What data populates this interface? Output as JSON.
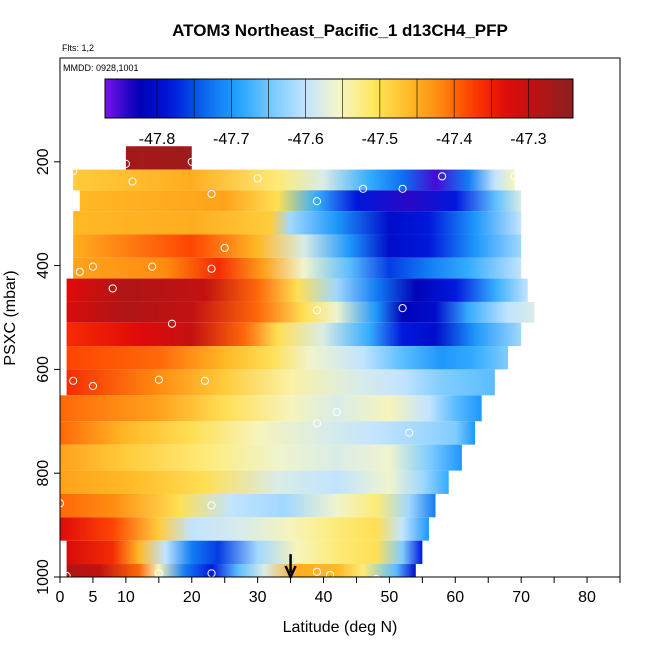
{
  "chart_data": {
    "type": "heatmap",
    "title": "ATOM3 Northeast_Pacific_1 d13CH4_PFP",
    "annotations": [
      "Flts: 1,2",
      "MMDD: 0928,1001"
    ],
    "xlabel": "Latitude (deg N)",
    "ylabel": "PSXC (mbar)",
    "xlim": [
      0,
      85
    ],
    "ylim": [
      1000,
      0
    ],
    "x_ticks": [
      0,
      5,
      10,
      20,
      30,
      40,
      50,
      60,
      70,
      80
    ],
    "y_ticks": [
      200,
      400,
      600,
      800,
      1000
    ],
    "colorbar": {
      "min": -47.87,
      "max": -47.24,
      "ticks": [
        -47.8,
        -47.7,
        -47.6,
        -47.5,
        -47.4,
        -47.3
      ],
      "tick_labels": [
        "-47.8",
        "-47.7",
        "-47.6",
        "-47.5",
        "-47.4",
        "-47.3"
      ]
    },
    "arrow_marker_latitude": 35,
    "bands": [
      {
        "p_top": 170,
        "p_bot": 215,
        "lat_start": 10,
        "lat_end": 20,
        "nodes": [
          [
            10,
            -47.27
          ],
          [
            20,
            -47.26
          ]
        ]
      },
      {
        "p_top": 215,
        "p_bot": 255,
        "lat_start": 2,
        "lat_end": 69,
        "nodes": [
          [
            2,
            -47.48
          ],
          [
            20,
            -47.45
          ],
          [
            33,
            -47.52
          ],
          [
            40,
            -47.58
          ],
          [
            47,
            -47.68
          ],
          [
            52,
            -47.73
          ],
          [
            57,
            -47.85
          ],
          [
            62,
            -47.72
          ],
          [
            66,
            -47.6
          ],
          [
            69,
            -47.55
          ]
        ]
      },
      {
        "p_top": 255,
        "p_bot": 295,
        "lat_start": 3,
        "lat_end": 70,
        "nodes": [
          [
            3,
            -47.46
          ],
          [
            25,
            -47.44
          ],
          [
            33,
            -47.5
          ],
          [
            39,
            -47.68
          ],
          [
            45,
            -47.78
          ],
          [
            53,
            -47.84
          ],
          [
            60,
            -47.78
          ],
          [
            66,
            -47.66
          ],
          [
            70,
            -47.58
          ]
        ]
      },
      {
        "p_top": 295,
        "p_bot": 340,
        "lat_start": 2,
        "lat_end": 70,
        "nodes": [
          [
            2,
            -47.46
          ],
          [
            20,
            -47.45
          ],
          [
            32,
            -47.48
          ],
          [
            35,
            -47.62
          ],
          [
            42,
            -47.7
          ],
          [
            50,
            -47.8
          ],
          [
            56,
            -47.78
          ],
          [
            63,
            -47.7
          ],
          [
            70,
            -47.6
          ]
        ]
      },
      {
        "p_top": 340,
        "p_bot": 385,
        "lat_start": 2,
        "lat_end": 70,
        "nodes": [
          [
            2,
            -47.45
          ],
          [
            20,
            -47.38
          ],
          [
            30,
            -47.46
          ],
          [
            37,
            -47.58
          ],
          [
            44,
            -47.7
          ],
          [
            50,
            -47.8
          ],
          [
            56,
            -47.78
          ],
          [
            63,
            -47.7
          ],
          [
            70,
            -47.62
          ]
        ]
      },
      {
        "p_top": 385,
        "p_bot": 425,
        "lat_start": 2,
        "lat_end": 70,
        "nodes": [
          [
            2,
            -47.44
          ],
          [
            16,
            -47.42
          ],
          [
            24,
            -47.36
          ],
          [
            31,
            -47.44
          ],
          [
            37,
            -47.56
          ],
          [
            44,
            -47.66
          ],
          [
            50,
            -47.76
          ],
          [
            56,
            -47.72
          ],
          [
            62,
            -47.68
          ],
          [
            70,
            -47.6
          ]
        ]
      },
      {
        "p_top": 425,
        "p_bot": 470,
        "lat_start": 1,
        "lat_end": 71,
        "nodes": [
          [
            1,
            -47.33
          ],
          [
            10,
            -47.28
          ],
          [
            22,
            -47.3
          ],
          [
            30,
            -47.4
          ],
          [
            36,
            -47.5
          ],
          [
            42,
            -47.62
          ],
          [
            48,
            -47.72
          ],
          [
            54,
            -47.82
          ],
          [
            60,
            -47.78
          ],
          [
            66,
            -47.68
          ],
          [
            71,
            -47.6
          ]
        ]
      },
      {
        "p_top": 470,
        "p_bot": 510,
        "lat_start": 1,
        "lat_end": 72,
        "nodes": [
          [
            1,
            -47.32
          ],
          [
            10,
            -47.28
          ],
          [
            20,
            -47.3
          ],
          [
            30,
            -47.4
          ],
          [
            37,
            -47.5
          ],
          [
            42,
            -47.56
          ],
          [
            48,
            -47.7
          ],
          [
            52,
            -47.82
          ],
          [
            57,
            -47.8
          ],
          [
            62,
            -47.68
          ],
          [
            68,
            -47.6
          ],
          [
            72,
            -47.58
          ]
        ]
      },
      {
        "p_top": 510,
        "p_bot": 555,
        "lat_start": 1,
        "lat_end": 70,
        "nodes": [
          [
            1,
            -47.36
          ],
          [
            12,
            -47.33
          ],
          [
            20,
            -47.3
          ],
          [
            28,
            -47.4
          ],
          [
            33,
            -47.5
          ],
          [
            40,
            -47.58
          ],
          [
            47,
            -47.68
          ],
          [
            52,
            -47.78
          ],
          [
            57,
            -47.8
          ],
          [
            63,
            -47.7
          ],
          [
            70,
            -47.62
          ]
        ]
      },
      {
        "p_top": 555,
        "p_bot": 600,
        "lat_start": 1,
        "lat_end": 68,
        "nodes": [
          [
            1,
            -47.38
          ],
          [
            15,
            -47.4
          ],
          [
            25,
            -47.46
          ],
          [
            32,
            -47.5
          ],
          [
            38,
            -47.56
          ],
          [
            46,
            -47.6
          ],
          [
            52,
            -47.66
          ],
          [
            58,
            -47.7
          ],
          [
            63,
            -47.68
          ],
          [
            68,
            -47.64
          ]
        ]
      },
      {
        "p_top": 600,
        "p_bot": 650,
        "lat_start": 1,
        "lat_end": 66,
        "nodes": [
          [
            1,
            -47.36
          ],
          [
            15,
            -47.42
          ],
          [
            25,
            -47.48
          ],
          [
            35,
            -47.54
          ],
          [
            45,
            -47.58
          ],
          [
            52,
            -47.6
          ],
          [
            58,
            -47.64
          ],
          [
            66,
            -47.66
          ]
        ]
      },
      {
        "p_top": 650,
        "p_bot": 700,
        "lat_start": 0,
        "lat_end": 64,
        "nodes": [
          [
            0,
            -47.4
          ],
          [
            15,
            -47.44
          ],
          [
            25,
            -47.5
          ],
          [
            35,
            -47.55
          ],
          [
            42,
            -47.58
          ],
          [
            50,
            -47.55
          ],
          [
            56,
            -47.6
          ],
          [
            60,
            -47.66
          ],
          [
            64,
            -47.7
          ]
        ]
      },
      {
        "p_top": 700,
        "p_bot": 745,
        "lat_start": 0,
        "lat_end": 63,
        "nodes": [
          [
            0,
            -47.4
          ],
          [
            10,
            -47.46
          ],
          [
            20,
            -47.5
          ],
          [
            30,
            -47.55
          ],
          [
            40,
            -47.58
          ],
          [
            48,
            -47.6
          ],
          [
            55,
            -47.62
          ],
          [
            60,
            -47.64
          ],
          [
            63,
            -47.7
          ]
        ]
      },
      {
        "p_top": 745,
        "p_bot": 795,
        "lat_start": 0,
        "lat_end": 61,
        "nodes": [
          [
            0,
            -47.44
          ],
          [
            10,
            -47.48
          ],
          [
            22,
            -47.52
          ],
          [
            33,
            -47.56
          ],
          [
            42,
            -47.58
          ],
          [
            50,
            -47.56
          ],
          [
            56,
            -47.64
          ],
          [
            61,
            -47.7
          ]
        ]
      },
      {
        "p_top": 795,
        "p_bot": 840,
        "lat_start": 0,
        "lat_end": 59,
        "nodes": [
          [
            0,
            -47.44
          ],
          [
            10,
            -47.46
          ],
          [
            22,
            -47.5
          ],
          [
            33,
            -47.58
          ],
          [
            42,
            -47.6
          ],
          [
            50,
            -47.56
          ],
          [
            55,
            -47.62
          ],
          [
            59,
            -47.68
          ]
        ]
      },
      {
        "p_top": 840,
        "p_bot": 885,
        "lat_start": 0,
        "lat_end": 57,
        "nodes": [
          [
            0,
            -47.4
          ],
          [
            8,
            -47.42
          ],
          [
            18,
            -47.5
          ],
          [
            26,
            -47.6
          ],
          [
            34,
            -47.62
          ],
          [
            42,
            -47.56
          ],
          [
            48,
            -47.52
          ],
          [
            53,
            -47.62
          ],
          [
            57,
            -47.72
          ]
        ]
      },
      {
        "p_top": 885,
        "p_bot": 930,
        "lat_start": 0,
        "lat_end": 56,
        "nodes": [
          [
            0,
            -47.33
          ],
          [
            8,
            -47.38
          ],
          [
            15,
            -47.48
          ],
          [
            20,
            -47.6
          ],
          [
            28,
            -47.58
          ],
          [
            35,
            -47.55
          ],
          [
            42,
            -47.52
          ],
          [
            48,
            -47.5
          ],
          [
            52,
            -47.6
          ],
          [
            56,
            -47.7
          ]
        ]
      },
      {
        "p_top": 930,
        "p_bot": 975,
        "lat_start": 1,
        "lat_end": 55,
        "nodes": [
          [
            1,
            -47.32
          ],
          [
            8,
            -47.36
          ],
          [
            12,
            -47.46
          ],
          [
            16,
            -47.6
          ],
          [
            20,
            -47.72
          ],
          [
            24,
            -47.76
          ],
          [
            30,
            -47.62
          ],
          [
            36,
            -47.55
          ],
          [
            42,
            -47.52
          ],
          [
            48,
            -47.5
          ],
          [
            52,
            -47.64
          ],
          [
            55,
            -47.78
          ]
        ]
      },
      {
        "p_top": 975,
        "p_bot": 1005,
        "lat_start": 1,
        "lat_end": 54,
        "nodes": [
          [
            1,
            -47.28
          ],
          [
            6,
            -47.3
          ],
          [
            12,
            -47.4
          ],
          [
            15,
            -47.55
          ],
          [
            19,
            -47.72
          ],
          [
            23,
            -47.78
          ],
          [
            27,
            -47.66
          ],
          [
            31,
            -47.58
          ],
          [
            36,
            -47.45
          ],
          [
            42,
            -47.46
          ],
          [
            46,
            -47.52
          ],
          [
            51,
            -47.66
          ],
          [
            54,
            -47.8
          ]
        ]
      }
    ],
    "samples": [
      [
        2,
        218
      ],
      [
        10,
        204
      ],
      [
        11,
        238
      ],
      [
        20,
        200
      ],
      [
        23,
        262
      ],
      [
        30,
        232
      ],
      [
        39,
        276
      ],
      [
        46,
        252
      ],
      [
        52,
        252
      ],
      [
        58,
        228
      ],
      [
        69,
        228
      ],
      [
        25,
        366
      ],
      [
        23,
        406
      ],
      [
        3,
        412
      ],
      [
        5,
        402
      ],
      [
        14,
        402
      ],
      [
        8,
        444
      ],
      [
        17,
        512
      ],
      [
        39,
        486
      ],
      [
        52,
        482
      ],
      [
        2,
        622
      ],
      [
        5,
        632
      ],
      [
        15,
        620
      ],
      [
        22,
        622
      ],
      [
        42,
        682
      ],
      [
        39,
        704
      ],
      [
        53,
        722
      ],
      [
        0,
        858
      ],
      [
        23,
        862
      ],
      [
        1,
        998
      ],
      [
        15,
        993
      ],
      [
        23,
        993
      ],
      [
        39,
        990
      ],
      [
        41,
        996
      ],
      [
        48,
        1004
      ]
    ]
  }
}
